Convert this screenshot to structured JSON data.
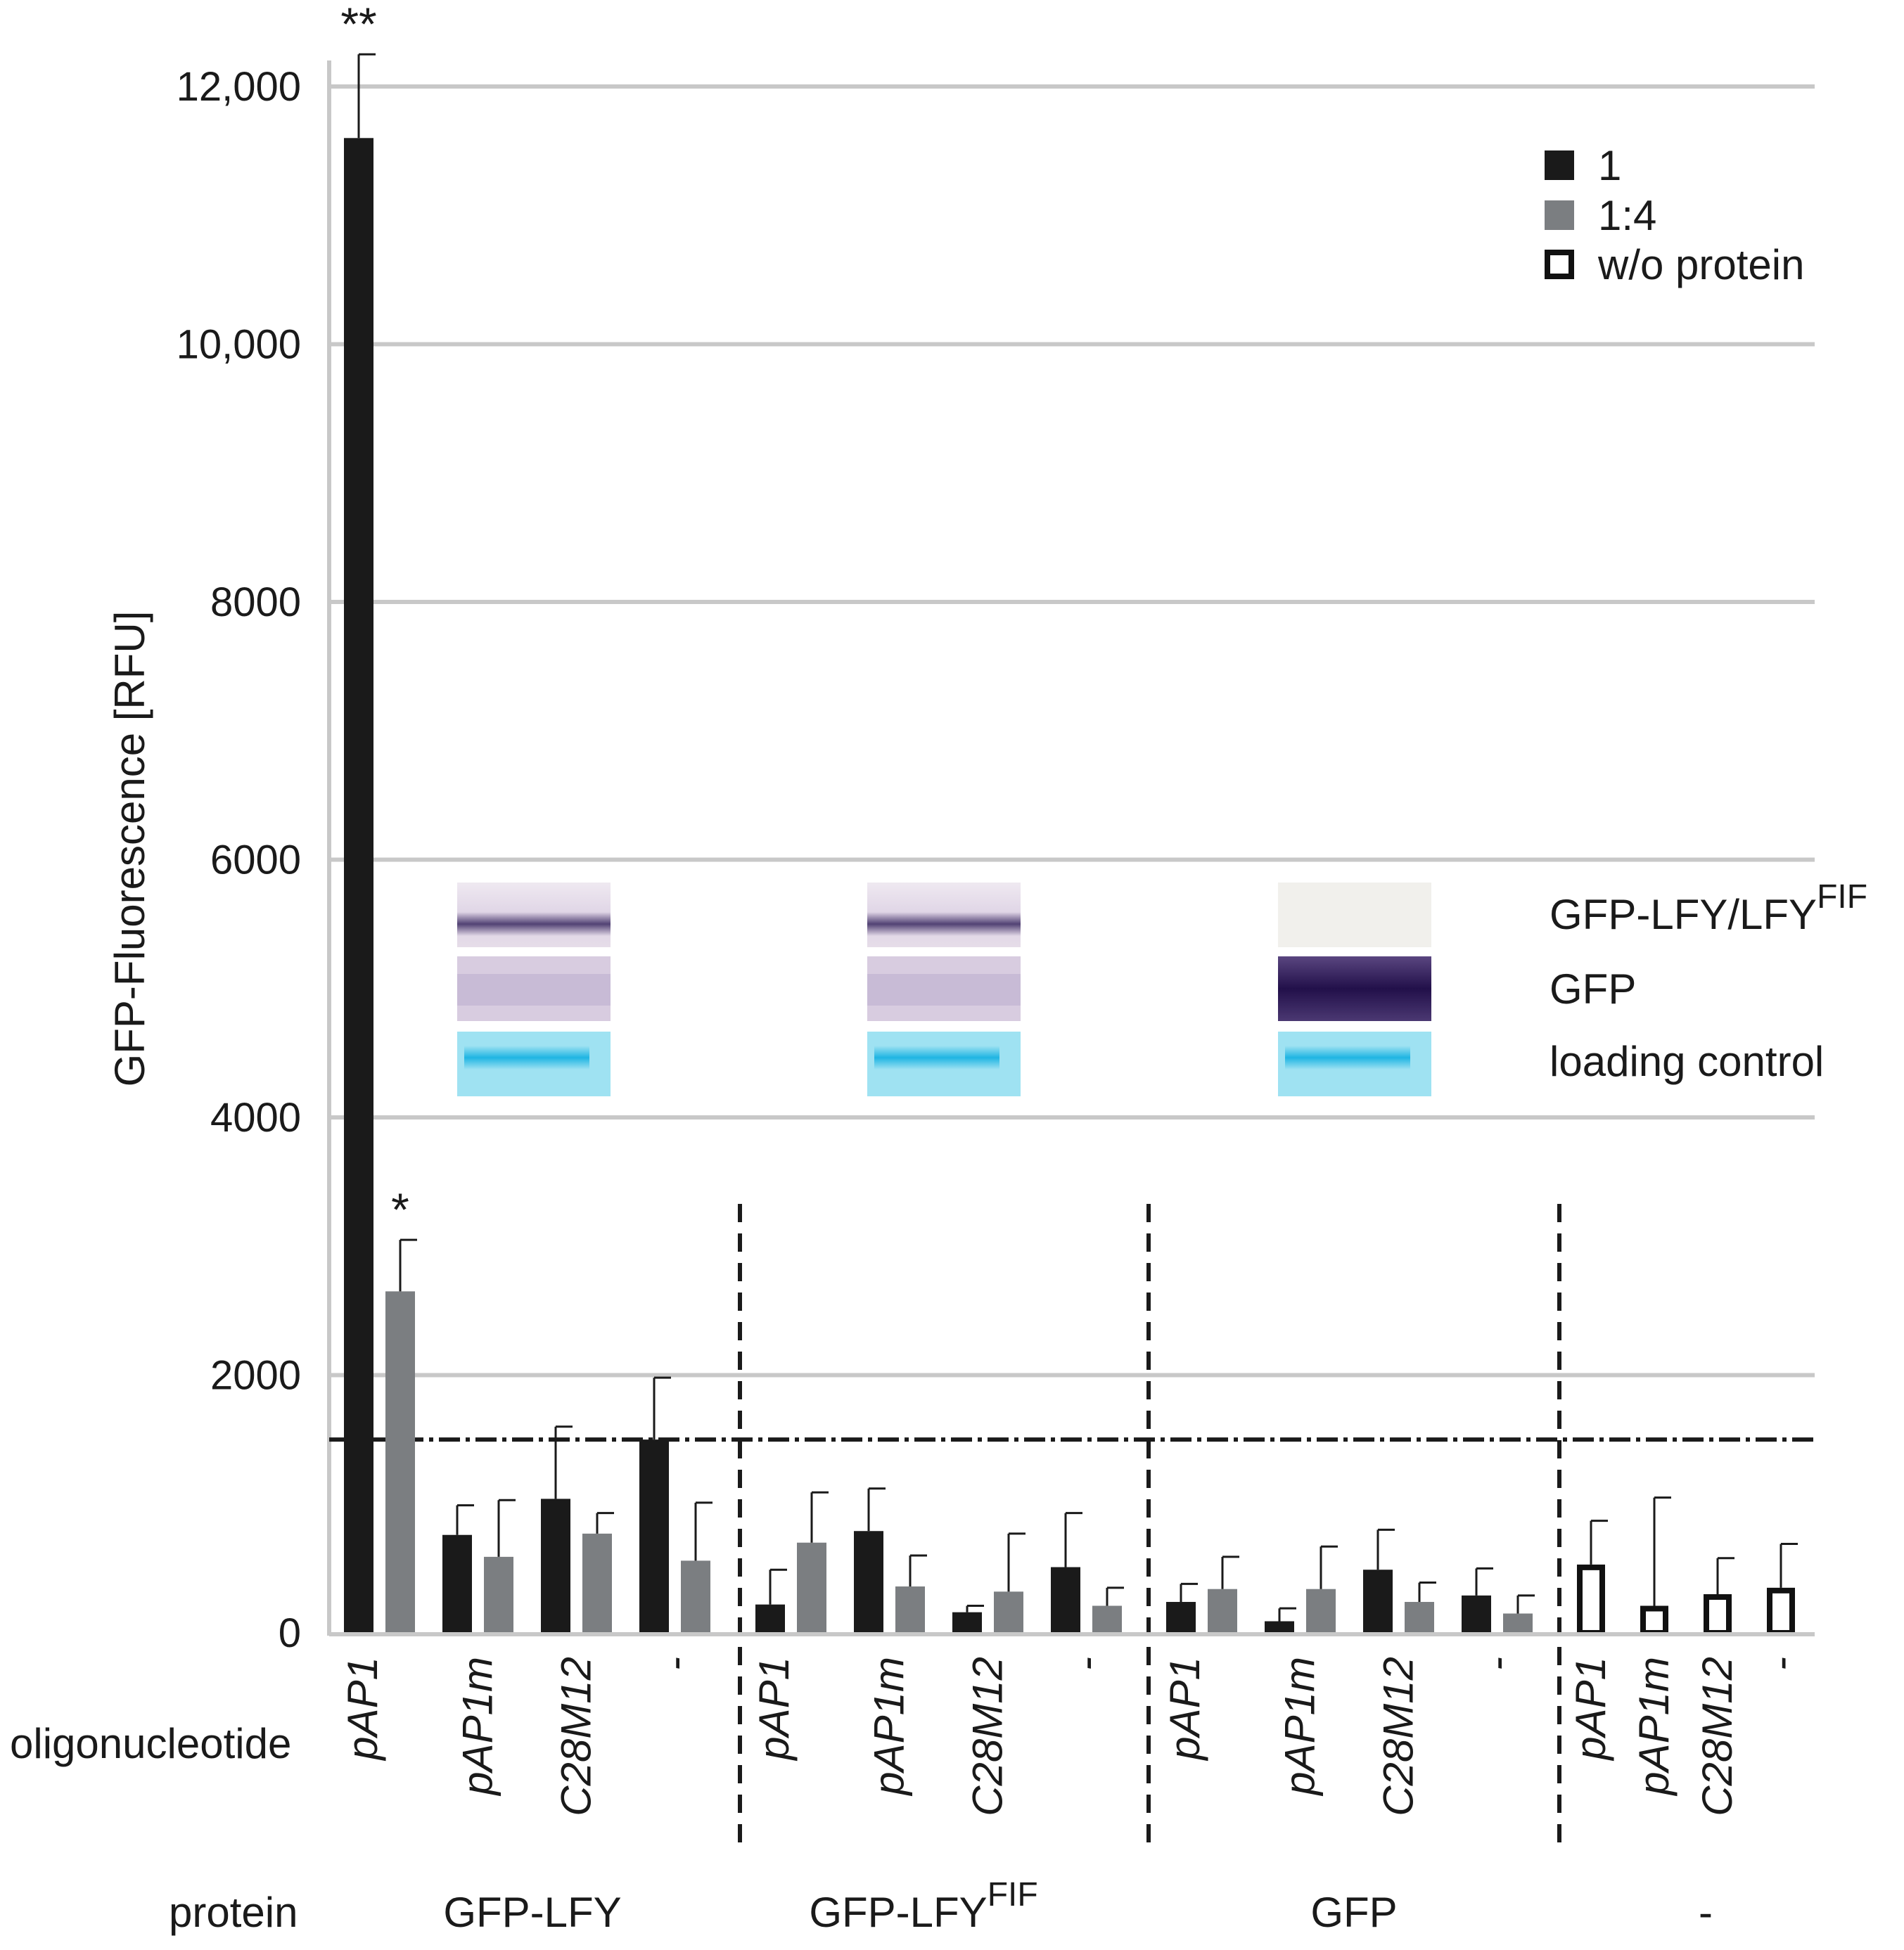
{
  "chart_data": {
    "type": "bar",
    "ylabel": "GFP-Fluorescence [RFU]",
    "ylim": [
      0,
      12000
    ],
    "yticks": [
      {
        "value": 0,
        "label": "0"
      },
      {
        "value": 2000,
        "label": "2000"
      },
      {
        "value": 4000,
        "label": "4000"
      },
      {
        "value": 6000,
        "label": "6000"
      },
      {
        "value": 8000,
        "label": "8000"
      },
      {
        "value": 10000,
        "label": "10,000"
      },
      {
        "value": 12000,
        "label": "12,000"
      }
    ],
    "grid": true,
    "threshold": 1500,
    "row_labels": {
      "oligonucleotide": "oligonucleotide",
      "protein": "protein"
    },
    "legend": [
      {
        "name": "1",
        "style": "black"
      },
      {
        "name": "1:4",
        "style": "gray"
      },
      {
        "name": "w/o protein",
        "style": "open"
      }
    ],
    "groups": [
      {
        "protein": "GFP-LFY",
        "protein_sup": "",
        "oligos": [
          {
            "label": "pAP1",
            "italic": true,
            "bars": [
              {
                "series": "1",
                "value": 11600,
                "error": 650,
                "mark": "**"
              },
              {
                "series": "1:4",
                "value": 2650,
                "error": 400,
                "mark": "*"
              }
            ]
          },
          {
            "label": "pAP1m",
            "italic": true,
            "bars": [
              {
                "series": "1",
                "value": 760,
                "error": 230
              },
              {
                "series": "1:4",
                "value": 590,
                "error": 440
              }
            ]
          },
          {
            "label": "C28M12",
            "italic": true,
            "bars": [
              {
                "series": "1",
                "value": 1040,
                "error": 560
              },
              {
                "series": "1:4",
                "value": 770,
                "error": 160
              }
            ]
          },
          {
            "label": "-",
            "italic": false,
            "bars": [
              {
                "series": "1",
                "value": 1500,
                "error": 480
              },
              {
                "series": "1:4",
                "value": 560,
                "error": 450
              }
            ]
          }
        ]
      },
      {
        "protein": "GFP-LFY",
        "protein_sup": "FIF",
        "oligos": [
          {
            "label": "pAP1",
            "italic": true,
            "bars": [
              {
                "series": "1",
                "value": 220,
                "error": 270
              },
              {
                "series": "1:4",
                "value": 700,
                "error": 390
              }
            ]
          },
          {
            "label": "pAP1m",
            "italic": true,
            "bars": [
              {
                "series": "1",
                "value": 790,
                "error": 330
              },
              {
                "series": "1:4",
                "value": 360,
                "error": 240
              }
            ]
          },
          {
            "label": "C28M12",
            "italic": true,
            "bars": [
              {
                "series": "1",
                "value": 160,
                "error": 50
              },
              {
                "series": "1:4",
                "value": 320,
                "error": 450
              }
            ]
          },
          {
            "label": "-",
            "italic": false,
            "bars": [
              {
                "series": "1",
                "value": 510,
                "error": 420
              },
              {
                "series": "1:4",
                "value": 210,
                "error": 140
              }
            ]
          }
        ]
      },
      {
        "protein": "GFP",
        "protein_sup": "",
        "oligos": [
          {
            "label": "pAP1",
            "italic": true,
            "bars": [
              {
                "series": "1",
                "value": 240,
                "error": 140
              },
              {
                "series": "1:4",
                "value": 340,
                "error": 250
              }
            ]
          },
          {
            "label": "pAP1m",
            "italic": true,
            "bars": [
              {
                "series": "1",
                "value": 90,
                "error": 100
              },
              {
                "series": "1:4",
                "value": 340,
                "error": 330
              }
            ]
          },
          {
            "label": "C28M12",
            "italic": true,
            "bars": [
              {
                "series": "1",
                "value": 490,
                "error": 310
              },
              {
                "series": "1:4",
                "value": 240,
                "error": 150
              }
            ]
          },
          {
            "label": "-",
            "italic": false,
            "bars": [
              {
                "series": "1",
                "value": 290,
                "error": 210
              },
              {
                "series": "1:4",
                "value": 150,
                "error": 140
              }
            ]
          }
        ]
      },
      {
        "protein": "-",
        "protein_sup": "",
        "oligos": [
          {
            "label": "pAP1",
            "italic": true,
            "bars": [
              {
                "series": "w/o protein",
                "value": 530,
                "error": 340
              }
            ]
          },
          {
            "label": "pAP1m",
            "italic": true,
            "bars": [
              {
                "series": "w/o protein",
                "value": 210,
                "error": 840
              }
            ]
          },
          {
            "label": "C28M12",
            "italic": true,
            "bars": [
              {
                "series": "w/o protein",
                "value": 300,
                "error": 280
              }
            ]
          },
          {
            "label": "-",
            "italic": false,
            "bars": [
              {
                "series": "w/o protein",
                "value": 350,
                "error": 340
              }
            ]
          }
        ]
      }
    ],
    "blot": {
      "labels": [
        {
          "main": "GFP-LFY/LFY",
          "sup": "FIF"
        },
        {
          "main": "GFP",
          "sup": ""
        },
        {
          "main": "loading control",
          "sup": ""
        }
      ]
    }
  },
  "colors": {
    "series_1": "#1a1a1a",
    "series_1_4": "#7b7e81",
    "open_edge": "#111111",
    "grid": "#c8c8c8",
    "axis": "#c8c8c8",
    "divider": "#1a1a1a",
    "blot_light": "#e9e2ec",
    "blot_dark": "#d8cce0",
    "blot_band": "#4a3a6e",
    "blot_band_gfp_strong": "#2c1a55",
    "blot_blank": "#f1f0ec",
    "loading_bg": "#9fe2f2",
    "loading_band": "#1fb5e3"
  }
}
